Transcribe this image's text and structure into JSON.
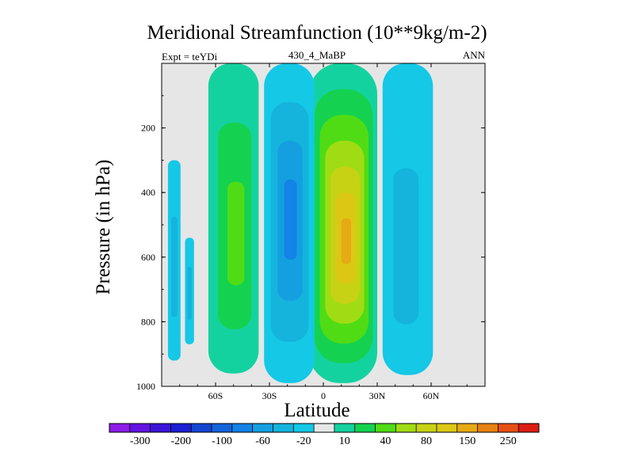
{
  "chart_data": {
    "type": "heatmap",
    "title": "Meridional Streamfunction (10**9kg/m-2)",
    "subtitle_left": "Expt = teYDi",
    "subtitle_center": "430_4_MaBP",
    "subtitle_right": "ANN",
    "xlabel": "Latitude",
    "ylabel": "Pressure (in hPa)",
    "xlim": [
      -90,
      90
    ],
    "ylim": [
      1000,
      0
    ],
    "x_ticks": [
      {
        "value": -60,
        "label": "60S"
      },
      {
        "value": -30,
        "label": "30S"
      },
      {
        "value": 0,
        "label": "0"
      },
      {
        "value": 30,
        "label": "30N"
      },
      {
        "value": 60,
        "label": "60N"
      }
    ],
    "y_ticks": [
      {
        "value": 200,
        "label": "200"
      },
      {
        "value": 400,
        "label": "400"
      },
      {
        "value": 600,
        "label": "600"
      },
      {
        "value": 800,
        "label": "800"
      },
      {
        "value": 1000,
        "label": "1000"
      }
    ],
    "colorbar": {
      "colors": [
        "#8c1ce6",
        "#6414e0",
        "#3c14d8",
        "#1e1ed2",
        "#1446d2",
        "#1464dc",
        "#1482e6",
        "#14a0e0",
        "#14b4dc",
        "#14c8e6",
        "#e6e6e6",
        "#14d2a0",
        "#14d250",
        "#50dc14",
        "#a0dc14",
        "#c8d214",
        "#dcc814",
        "#e6aa14",
        "#e68214",
        "#e65014",
        "#dc1e14"
      ],
      "labels": [
        {
          "index": 1,
          "label": "-300"
        },
        {
          "index": 3,
          "label": "-200"
        },
        {
          "index": 5,
          "label": "-100"
        },
        {
          "index": 7,
          "label": "-60"
        },
        {
          "index": 9,
          "label": "-20"
        },
        {
          "index": 11,
          "label": "10"
        },
        {
          "index": 13,
          "label": "40"
        },
        {
          "index": 15,
          "label": "80"
        },
        {
          "index": 17,
          "label": "150"
        },
        {
          "index": 19,
          "label": "250"
        }
      ]
    },
    "cells": [
      {
        "name": "nh-hadley",
        "lat_center": 11,
        "lat_halfwidth": 19,
        "p_top": 0,
        "p_bottom": 990,
        "peak": 150,
        "peak_lat": 13,
        "peak_p": 560
      },
      {
        "name": "sh-hadley",
        "lat_center": -19,
        "lat_halfwidth": 14,
        "p_top": 0,
        "p_bottom": 990,
        "peak": -60,
        "peak_lat": -18,
        "peak_p": 480
      },
      {
        "name": "sh-ferrel",
        "lat_center": -50,
        "lat_halfwidth": 14,
        "p_top": 0,
        "p_bottom": 960,
        "peak": 40,
        "peak_lat": -48,
        "peak_p": 550
      },
      {
        "name": "nh-ferrel",
        "lat_center": 47,
        "lat_halfwidth": 14,
        "p_top": 0,
        "p_bottom": 965,
        "peak": -20,
        "peak_lat": 45,
        "peak_p": 650
      },
      {
        "name": "sh-polar-a",
        "lat_center": -83,
        "lat_halfwidth": 3.5,
        "p_top": 300,
        "p_bottom": 920,
        "peak": -20,
        "peak_lat": -83,
        "peak_p": 650
      },
      {
        "name": "sh-polar-b",
        "lat_center": -74.5,
        "lat_halfwidth": 2.5,
        "p_top": 540,
        "p_bottom": 870,
        "peak": -20,
        "peak_lat": -74.5,
        "peak_p": 720
      }
    ]
  }
}
